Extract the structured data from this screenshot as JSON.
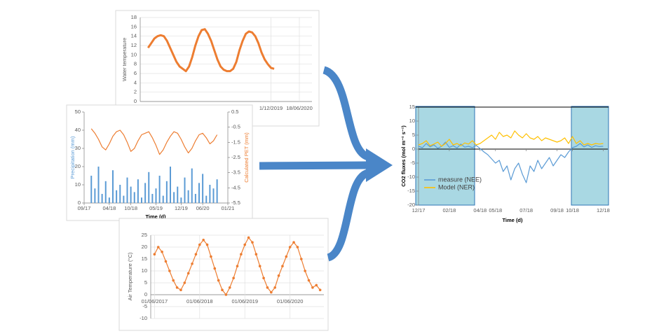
{
  "chart_data": [
    {
      "type": "line",
      "ylabel": "Water temperature",
      "ylim": [
        0,
        18
      ],
      "yticks": [
        0,
        2,
        4,
        6,
        8,
        10,
        12,
        14,
        16,
        18
      ],
      "grid": true,
      "xlim": [
        -2.5,
        52
      ],
      "xticks": [
        {
          "value": 39,
          "label": "1/12/2019"
        },
        {
          "value": 48,
          "label": "18/06/2020"
        }
      ],
      "series": [
        {
          "color": "#ed7d31",
          "values": [
            11.5,
            12.5,
            13.5,
            14,
            14.2,
            14,
            13,
            11.5,
            10,
            8.5,
            7.5,
            7,
            6.5,
            7.5,
            9.5,
            12,
            14,
            15.3,
            15.5,
            14.5,
            13,
            11,
            9,
            7.5,
            6.8,
            6.5,
            6.5,
            7,
            8.5,
            11,
            13,
            14.5,
            15,
            14.8,
            14,
            12.5,
            10.5,
            9,
            8,
            7.2,
            7
          ]
        }
      ]
    },
    {
      "type": "line",
      "ylabel": "Precipitation (mm)",
      "y2label": "Calculated PET (mm)",
      "xlabel": "Time (d)",
      "ylim": [
        0,
        50
      ],
      "yticks": [
        0,
        10,
        20,
        30,
        40,
        50
      ],
      "y2lim": [
        -5.5,
        0.5
      ],
      "y2ticks": [
        0.5,
        -0.5,
        -1.5,
        -2.5,
        -3.5,
        -4.5,
        -5.5
      ],
      "xlim": [
        0,
        40
      ],
      "xticks": [
        {
          "value": 0,
          "label": "09/17"
        },
        {
          "value": 7,
          "label": "04/18"
        },
        {
          "value": 13,
          "label": "10/18"
        },
        {
          "value": 20,
          "label": "05/19"
        },
        {
          "value": 27,
          "label": "12/19"
        },
        {
          "value": 33,
          "label": "06/20"
        },
        {
          "value": 40,
          "label": "01/21"
        }
      ],
      "x": [
        2,
        3,
        4,
        5,
        6,
        7,
        8,
        9,
        10,
        11,
        12,
        13,
        14,
        15,
        16,
        17,
        18,
        19,
        20,
        21,
        22,
        23,
        24,
        25,
        26,
        27,
        28,
        29,
        30,
        31,
        32,
        33,
        34,
        35,
        36,
        37
      ],
      "series": [
        {
          "type": "bar",
          "color": "#5b9bd5",
          "values": [
            15,
            8,
            20,
            5,
            12,
            3,
            18,
            7,
            10,
            4,
            14,
            9,
            6,
            13,
            3,
            11,
            17,
            5,
            8,
            15,
            4,
            12,
            20,
            6,
            9,
            3,
            14,
            7,
            19,
            5,
            11,
            16,
            4,
            10,
            8,
            13
          ]
        },
        {
          "type": "line",
          "axis": "y2",
          "color": "#ed7d31",
          "values": [
            -0.6,
            -0.9,
            -1.3,
            -1.8,
            -2.0,
            -1.6,
            -1.1,
            -0.8,
            -0.7,
            -1.0,
            -1.5,
            -2.1,
            -1.9,
            -1.4,
            -1.0,
            -0.9,
            -0.8,
            -1.2,
            -1.7,
            -2.3,
            -2.0,
            -1.5,
            -1.1,
            -0.8,
            -0.9,
            -1.3,
            -1.8,
            -2.2,
            -1.9,
            -1.4,
            -1.0,
            -0.9,
            -1.2,
            -1.6,
            -1.4,
            -1.0
          ]
        }
      ]
    },
    {
      "type": "line",
      "markers": true,
      "ylabel": "Air Temperature (°C)",
      "ylim": [
        -10,
        25
      ],
      "yticks": [
        -10,
        -5,
        0,
        5,
        10,
        15,
        20,
        25
      ],
      "grid": true,
      "xlim": [
        -1,
        45
      ],
      "xticks": [
        {
          "value": 0,
          "label": "01/06/2017"
        },
        {
          "value": 12,
          "label": "01/06/2018"
        },
        {
          "value": 24,
          "label": "01/06/2019"
        },
        {
          "value": 36,
          "label": "01/06/2020"
        }
      ],
      "series": [
        {
          "color": "#ed7d31",
          "values": [
            17,
            20,
            18,
            14,
            10,
            6,
            3,
            2,
            5,
            9,
            13,
            17,
            21,
            23,
            21,
            16,
            11,
            6,
            2,
            0,
            3,
            7,
            12,
            17,
            21,
            24,
            22,
            17,
            12,
            7,
            3,
            1,
            3,
            8,
            12,
            16,
            20,
            22,
            20,
            15,
            10,
            6,
            3,
            4,
            2
          ]
        }
      ]
    },
    {
      "type": "line",
      "ylabel": "CO2 fluxes (mol m⁻² s⁻¹)",
      "xlabel": "Time (d)",
      "legend": "lower left",
      "ylim": [
        -20,
        15
      ],
      "yticks": [
        15,
        10,
        5,
        0,
        -5,
        -10,
        -15,
        -20
      ],
      "xlim": [
        0,
        12.3
      ],
      "xticks": [
        {
          "value": 0,
          "label": "12/17"
        },
        {
          "value": 2,
          "label": "02/18"
        },
        {
          "value": 4,
          "label": "04/18"
        },
        {
          "value": 5,
          "label": "05/18"
        },
        {
          "value": 7,
          "label": "07/18"
        },
        {
          "value": 9,
          "label": "09/18"
        },
        {
          "value": 10,
          "label": "10/18"
        },
        {
          "value": 12,
          "label": "12/18"
        }
      ],
      "x": [
        0,
        0.25,
        0.5,
        0.75,
        1,
        1.25,
        1.5,
        1.75,
        2,
        2.25,
        2.5,
        2.75,
        3,
        3.25,
        3.5,
        3.75,
        4,
        4.25,
        4.5,
        4.75,
        5,
        5.25,
        5.5,
        5.75,
        6,
        6.25,
        6.5,
        6.75,
        7,
        7.25,
        7.5,
        7.75,
        8,
        8.25,
        8.5,
        8.75,
        9,
        9.25,
        9.5,
        9.75,
        10,
        10.25,
        10.5,
        10.75,
        11,
        11.25,
        11.5,
        11.75,
        12
      ],
      "series": [
        {
          "name": "measure (NEE)",
          "color": "#5b9bd5",
          "values": [
            1,
            0.5,
            2,
            0.8,
            1.5,
            0.3,
            1,
            2.5,
            0.6,
            1.2,
            0.4,
            1.8,
            0.7,
            1,
            0.5,
            1.3,
            0.2,
            -1,
            -2,
            -3.5,
            -5,
            -4,
            -8,
            -6,
            -11,
            -7,
            -5,
            -9,
            -12,
            -6,
            -8,
            -4,
            -7,
            -5,
            -3,
            -6,
            -4,
            -2,
            -3,
            -1,
            0.5,
            1,
            2,
            0.8,
            1.5,
            0.6,
            1.2,
            0.9,
            1
          ]
        },
        {
          "name": "Model (NER)",
          "color": "#ffc000",
          "values": [
            1.5,
            2,
            3,
            1.2,
            1.8,
            2.5,
            1,
            2,
            3.5,
            1.5,
            2,
            1.2,
            2.2,
            1.8,
            3,
            1.5,
            2,
            3,
            4,
            5,
            3.5,
            6,
            4.5,
            5,
            4,
            6.5,
            5,
            4,
            5.5,
            4,
            3.5,
            4.5,
            3,
            4,
            3.5,
            3,
            2.5,
            3,
            4,
            2,
            4.5,
            2,
            3,
            1.5,
            2,
            1.5,
            2,
            1.8,
            2
          ]
        }
      ]
    }
  ]
}
